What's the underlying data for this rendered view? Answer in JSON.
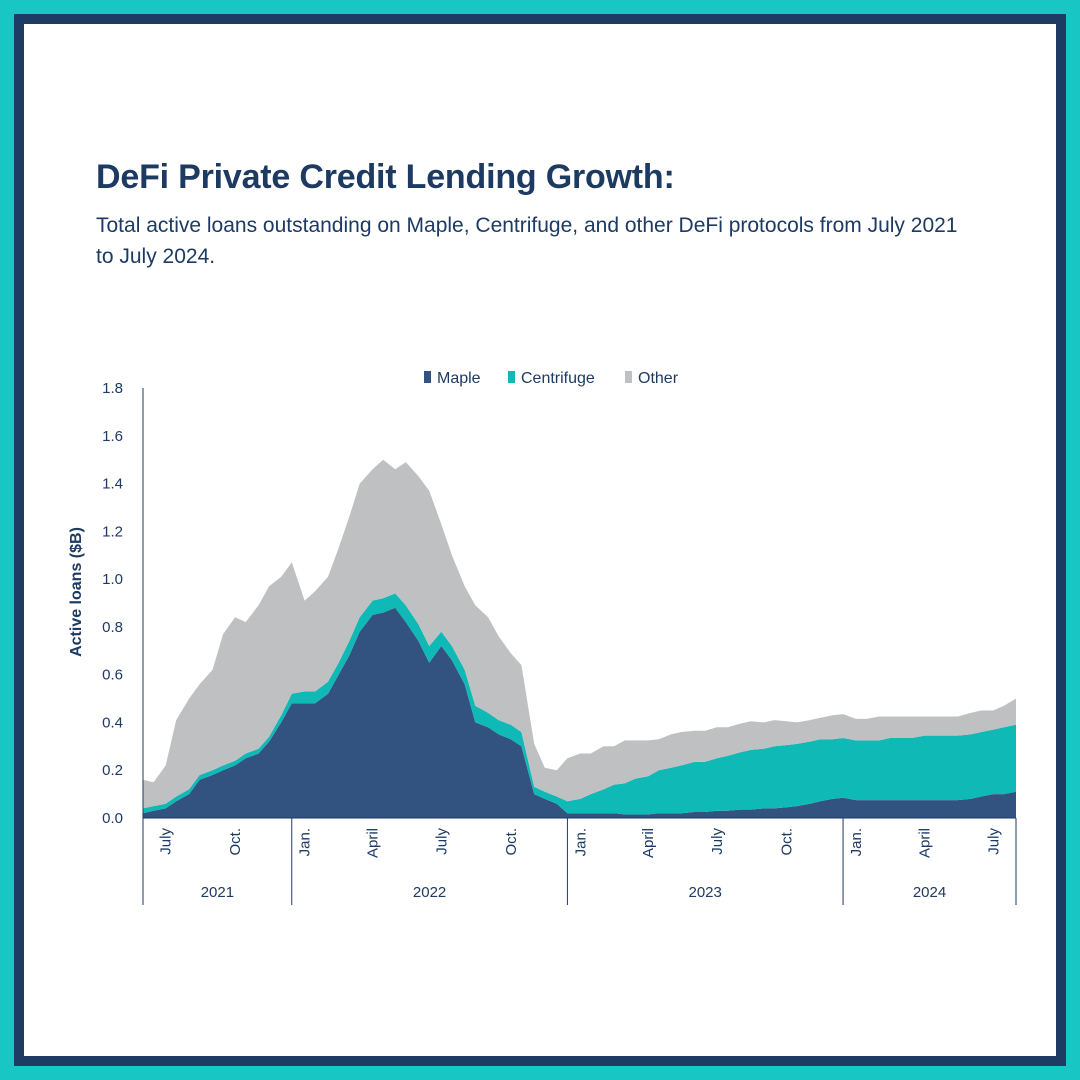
{
  "header": {
    "title": "DeFi Private Credit Lending Growth:",
    "subtitle": "Total active loans outstanding on Maple, Centrifuge, and other DeFi protocols from July 2021 to July 2024."
  },
  "colors": {
    "maple": "#32537f",
    "centrifuge": "#0fb9b5",
    "other": "#bfc0c2",
    "axis": "#1d3a63",
    "border": "#18c6c4",
    "frame": "#1e3b64"
  },
  "chart_data": {
    "type": "area",
    "stacked": true,
    "ylabel": "Active loans ($B)",
    "ylim": [
      0,
      1.8
    ],
    "yticks": [
      "0.0",
      "0.2",
      "0.4",
      "0.6",
      "0.8",
      "1.0",
      "1.2",
      "1.4",
      "1.6",
      "1.8"
    ],
    "xlim": [
      "2021-06-01",
      "2024-07-31"
    ],
    "month_ticks": [
      {
        "label": "July",
        "date": "2021-07-01"
      },
      {
        "label": "Oct.",
        "date": "2021-10-01"
      },
      {
        "label": "Jan.",
        "date": "2022-01-01"
      },
      {
        "label": "April",
        "date": "2022-04-01"
      },
      {
        "label": "July",
        "date": "2022-07-01"
      },
      {
        "label": "Oct.",
        "date": "2022-10-01"
      },
      {
        "label": "Jan.",
        "date": "2023-01-01"
      },
      {
        "label": "April",
        "date": "2023-04-01"
      },
      {
        "label": "July",
        "date": "2023-07-01"
      },
      {
        "label": "Oct.",
        "date": "2023-10-01"
      },
      {
        "label": "Jan.",
        "date": "2024-01-01"
      },
      {
        "label": "April",
        "date": "2024-04-01"
      },
      {
        "label": "July",
        "date": "2024-07-01"
      }
    ],
    "year_groups": [
      {
        "label": "2021",
        "start": "2021-06-01",
        "end": "2021-12-15"
      },
      {
        "label": "2022",
        "start": "2021-12-15",
        "end": "2022-12-15"
      },
      {
        "label": "2023",
        "start": "2022-12-15",
        "end": "2023-12-15"
      },
      {
        "label": "2024",
        "start": "2023-12-15",
        "end": "2024-07-31"
      }
    ],
    "legend_position": "top",
    "dates": [
      "2021-06-01",
      "2021-06-15",
      "2021-07-01",
      "2021-07-15",
      "2021-08-01",
      "2021-08-15",
      "2021-09-01",
      "2021-09-15",
      "2021-10-01",
      "2021-10-15",
      "2021-11-01",
      "2021-11-15",
      "2021-12-01",
      "2021-12-15",
      "2022-01-01",
      "2022-01-15",
      "2022-02-01",
      "2022-02-15",
      "2022-03-01",
      "2022-03-15",
      "2022-04-01",
      "2022-04-15",
      "2022-05-01",
      "2022-05-15",
      "2022-06-01",
      "2022-06-15",
      "2022-07-01",
      "2022-07-15",
      "2022-08-01",
      "2022-08-15",
      "2022-09-01",
      "2022-09-15",
      "2022-10-01",
      "2022-10-15",
      "2022-11-01",
      "2022-11-15",
      "2022-12-01",
      "2022-12-15",
      "2023-01-01",
      "2023-01-15",
      "2023-02-01",
      "2023-02-15",
      "2023-03-01",
      "2023-03-15",
      "2023-04-01",
      "2023-04-15",
      "2023-05-01",
      "2023-05-15",
      "2023-06-01",
      "2023-06-15",
      "2023-07-01",
      "2023-07-15",
      "2023-08-01",
      "2023-08-15",
      "2023-09-01",
      "2023-09-15",
      "2023-10-01",
      "2023-10-15",
      "2023-11-01",
      "2023-11-15",
      "2023-12-01",
      "2023-12-15",
      "2024-01-01",
      "2024-01-15",
      "2024-02-01",
      "2024-02-15",
      "2024-03-01",
      "2024-03-15",
      "2024-04-01",
      "2024-04-15",
      "2024-05-01",
      "2024-05-15",
      "2024-06-01",
      "2024-06-15",
      "2024-07-01",
      "2024-07-15",
      "2024-07-31"
    ],
    "series": [
      {
        "name": "Maple",
        "color": "#32537f",
        "values": [
          0.02,
          0.03,
          0.04,
          0.07,
          0.1,
          0.16,
          0.18,
          0.2,
          0.22,
          0.25,
          0.27,
          0.32,
          0.4,
          0.48,
          0.48,
          0.48,
          0.52,
          0.6,
          0.68,
          0.78,
          0.85,
          0.86,
          0.88,
          0.82,
          0.74,
          0.65,
          0.72,
          0.66,
          0.56,
          0.4,
          0.38,
          0.35,
          0.33,
          0.3,
          0.1,
          0.08,
          0.06,
          0.02,
          0.02,
          0.02,
          0.02,
          0.02,
          0.015,
          0.015,
          0.015,
          0.02,
          0.02,
          0.02,
          0.025,
          0.025,
          0.03,
          0.03,
          0.035,
          0.035,
          0.04,
          0.04,
          0.045,
          0.05,
          0.06,
          0.07,
          0.08,
          0.085,
          0.075,
          0.075,
          0.075,
          0.075,
          0.075,
          0.075,
          0.075,
          0.075,
          0.075,
          0.075,
          0.08,
          0.09,
          0.1,
          0.1,
          0.11
        ]
      },
      {
        "name": "Centrifuge",
        "color": "#0fb9b5",
        "values": [
          0.02,
          0.02,
          0.02,
          0.02,
          0.02,
          0.02,
          0.02,
          0.02,
          0.02,
          0.02,
          0.02,
          0.02,
          0.03,
          0.04,
          0.05,
          0.05,
          0.05,
          0.05,
          0.06,
          0.06,
          0.06,
          0.06,
          0.06,
          0.07,
          0.07,
          0.07,
          0.06,
          0.06,
          0.06,
          0.07,
          0.06,
          0.06,
          0.06,
          0.06,
          0.03,
          0.03,
          0.03,
          0.05,
          0.06,
          0.08,
          0.1,
          0.12,
          0.13,
          0.15,
          0.16,
          0.18,
          0.19,
          0.2,
          0.21,
          0.21,
          0.22,
          0.23,
          0.24,
          0.25,
          0.25,
          0.26,
          0.26,
          0.26,
          0.26,
          0.26,
          0.25,
          0.25,
          0.25,
          0.25,
          0.25,
          0.26,
          0.26,
          0.26,
          0.27,
          0.27,
          0.27,
          0.27,
          0.27,
          0.27,
          0.27,
          0.28,
          0.28
        ]
      },
      {
        "name": "Other",
        "color": "#bfc0c2",
        "values": [
          0.12,
          0.1,
          0.16,
          0.32,
          0.38,
          0.38,
          0.42,
          0.55,
          0.6,
          0.55,
          0.6,
          0.63,
          0.58,
          0.55,
          0.38,
          0.42,
          0.44,
          0.48,
          0.52,
          0.56,
          0.55,
          0.58,
          0.52,
          0.6,
          0.62,
          0.65,
          0.45,
          0.38,
          0.35,
          0.42,
          0.4,
          0.35,
          0.3,
          0.28,
          0.18,
          0.1,
          0.11,
          0.18,
          0.19,
          0.17,
          0.18,
          0.16,
          0.18,
          0.16,
          0.15,
          0.13,
          0.14,
          0.14,
          0.13,
          0.13,
          0.13,
          0.12,
          0.12,
          0.12,
          0.11,
          0.11,
          0.1,
          0.09,
          0.09,
          0.09,
          0.1,
          0.1,
          0.09,
          0.09,
          0.1,
          0.09,
          0.09,
          0.09,
          0.08,
          0.08,
          0.08,
          0.08,
          0.09,
          0.09,
          0.08,
          0.09,
          0.11
        ]
      }
    ]
  }
}
